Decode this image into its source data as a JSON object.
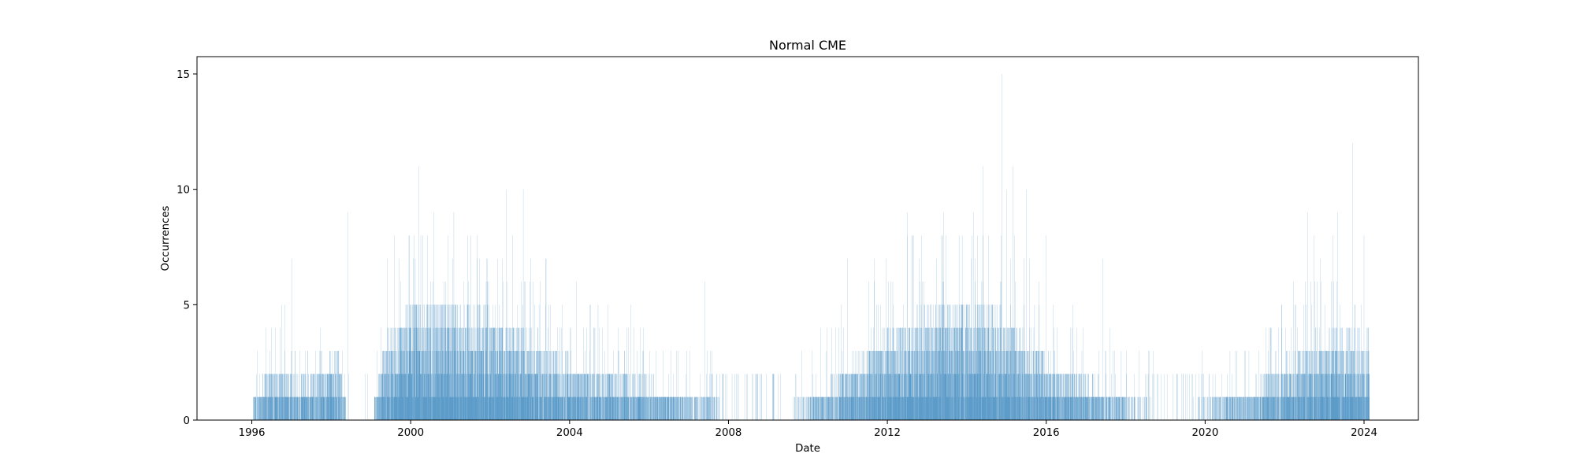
{
  "chart_data": {
    "type": "bar",
    "title": "Normal CME",
    "xlabel": "Date",
    "ylabel": "Occurrences",
    "xlim": [
      "1994-08-15",
      "2025-05-15"
    ],
    "ylim": [
      0,
      15.75
    ],
    "x_ticks": [
      "1996",
      "2000",
      "2004",
      "2008",
      "2012",
      "2016",
      "2020",
      "2024"
    ],
    "y_ticks": [
      0,
      5,
      10,
      15
    ],
    "grid": false,
    "legend": "none",
    "bar_color": "#1f77b4",
    "bin": "daily",
    "date_range": [
      "1996-01-15",
      "2024-02-20"
    ],
    "profile": [
      {
        "date": "1996-01-15",
        "typical": 1
      },
      {
        "date": "1996-07-01",
        "typical": 2
      },
      {
        "date": "1997-06-01",
        "typical": 1.5
      },
      {
        "date": "1998-03-01",
        "typical": 2.5
      },
      {
        "date": "1998-06-20",
        "typical": 0
      },
      {
        "date": "1999-01-01",
        "typical": 0.5
      },
      {
        "date": "1999-06-01",
        "typical": 3
      },
      {
        "date": "2000-03-01",
        "typical": 4
      },
      {
        "date": "2002-06-01",
        "typical": 3.5
      },
      {
        "date": "2003-06-01",
        "typical": 2.5
      },
      {
        "date": "2004-06-01",
        "typical": 2
      },
      {
        "date": "2006-01-01",
        "typical": 1.5
      },
      {
        "date": "2007-06-01",
        "typical": 1
      },
      {
        "date": "2008-06-01",
        "typical": 0.3
      },
      {
        "date": "2009-06-01",
        "typical": 0.6
      },
      {
        "date": "2010-06-01",
        "typical": 1.3
      },
      {
        "date": "2011-06-01",
        "typical": 2.5
      },
      {
        "date": "2012-06-01",
        "typical": 3.5
      },
      {
        "date": "2014-06-01",
        "typical": 4
      },
      {
        "date": "2015-06-01",
        "typical": 3
      },
      {
        "date": "2016-06-01",
        "typical": 2
      },
      {
        "date": "2017-06-01",
        "typical": 1.3
      },
      {
        "date": "2018-06-01",
        "typical": 0.8
      },
      {
        "date": "2019-06-01",
        "typical": 0.6
      },
      {
        "date": "2020-06-01",
        "typical": 1
      },
      {
        "date": "2021-06-01",
        "typical": 1.5
      },
      {
        "date": "2022-06-01",
        "typical": 2.5
      },
      {
        "date": "2023-06-01",
        "typical": 3
      },
      {
        "date": "2024-02-20",
        "typical": 3
      }
    ],
    "gaps": [
      [
        "1998-06-25",
        "1998-10-05"
      ],
      [
        "1998-12-25",
        "1999-02-01"
      ]
    ],
    "peaks": [
      {
        "date": "1996-10-01",
        "value": 5
      },
      {
        "date": "1997-01-01",
        "value": 7
      },
      {
        "date": "1998-06-01",
        "value": 9
      },
      {
        "date": "1999-06-01",
        "value": 7
      },
      {
        "date": "2000-03-15",
        "value": 11
      },
      {
        "date": "2000-08-01",
        "value": 9
      },
      {
        "date": "2001-02-01",
        "value": 9
      },
      {
        "date": "2001-09-01",
        "value": 8
      },
      {
        "date": "2002-06-01",
        "value": 10
      },
      {
        "date": "2002-11-01",
        "value": 10
      },
      {
        "date": "2003-01-01",
        "value": 6
      },
      {
        "date": "2004-03-01",
        "value": 6
      },
      {
        "date": "2007-06-01",
        "value": 6
      },
      {
        "date": "2011-01-01",
        "value": 7
      },
      {
        "date": "2011-09-01",
        "value": 7
      },
      {
        "date": "2012-07-01",
        "value": 9
      },
      {
        "date": "2013-06-01",
        "value": 9
      },
      {
        "date": "2014-03-01",
        "value": 9
      },
      {
        "date": "2014-06-01",
        "value": 11
      },
      {
        "date": "2014-11-20",
        "value": 15
      },
      {
        "date": "2015-01-01",
        "value": 10
      },
      {
        "date": "2015-03-01",
        "value": 11
      },
      {
        "date": "2015-07-01",
        "value": 10
      },
      {
        "date": "2016-01-01",
        "value": 8
      },
      {
        "date": "2017-06-01",
        "value": 7
      },
      {
        "date": "2022-08-01",
        "value": 9
      },
      {
        "date": "2022-10-01",
        "value": 8
      },
      {
        "date": "2023-05-01",
        "value": 9
      },
      {
        "date": "2023-09-15",
        "value": 12
      },
      {
        "date": "2024-01-01",
        "value": 8
      }
    ]
  }
}
